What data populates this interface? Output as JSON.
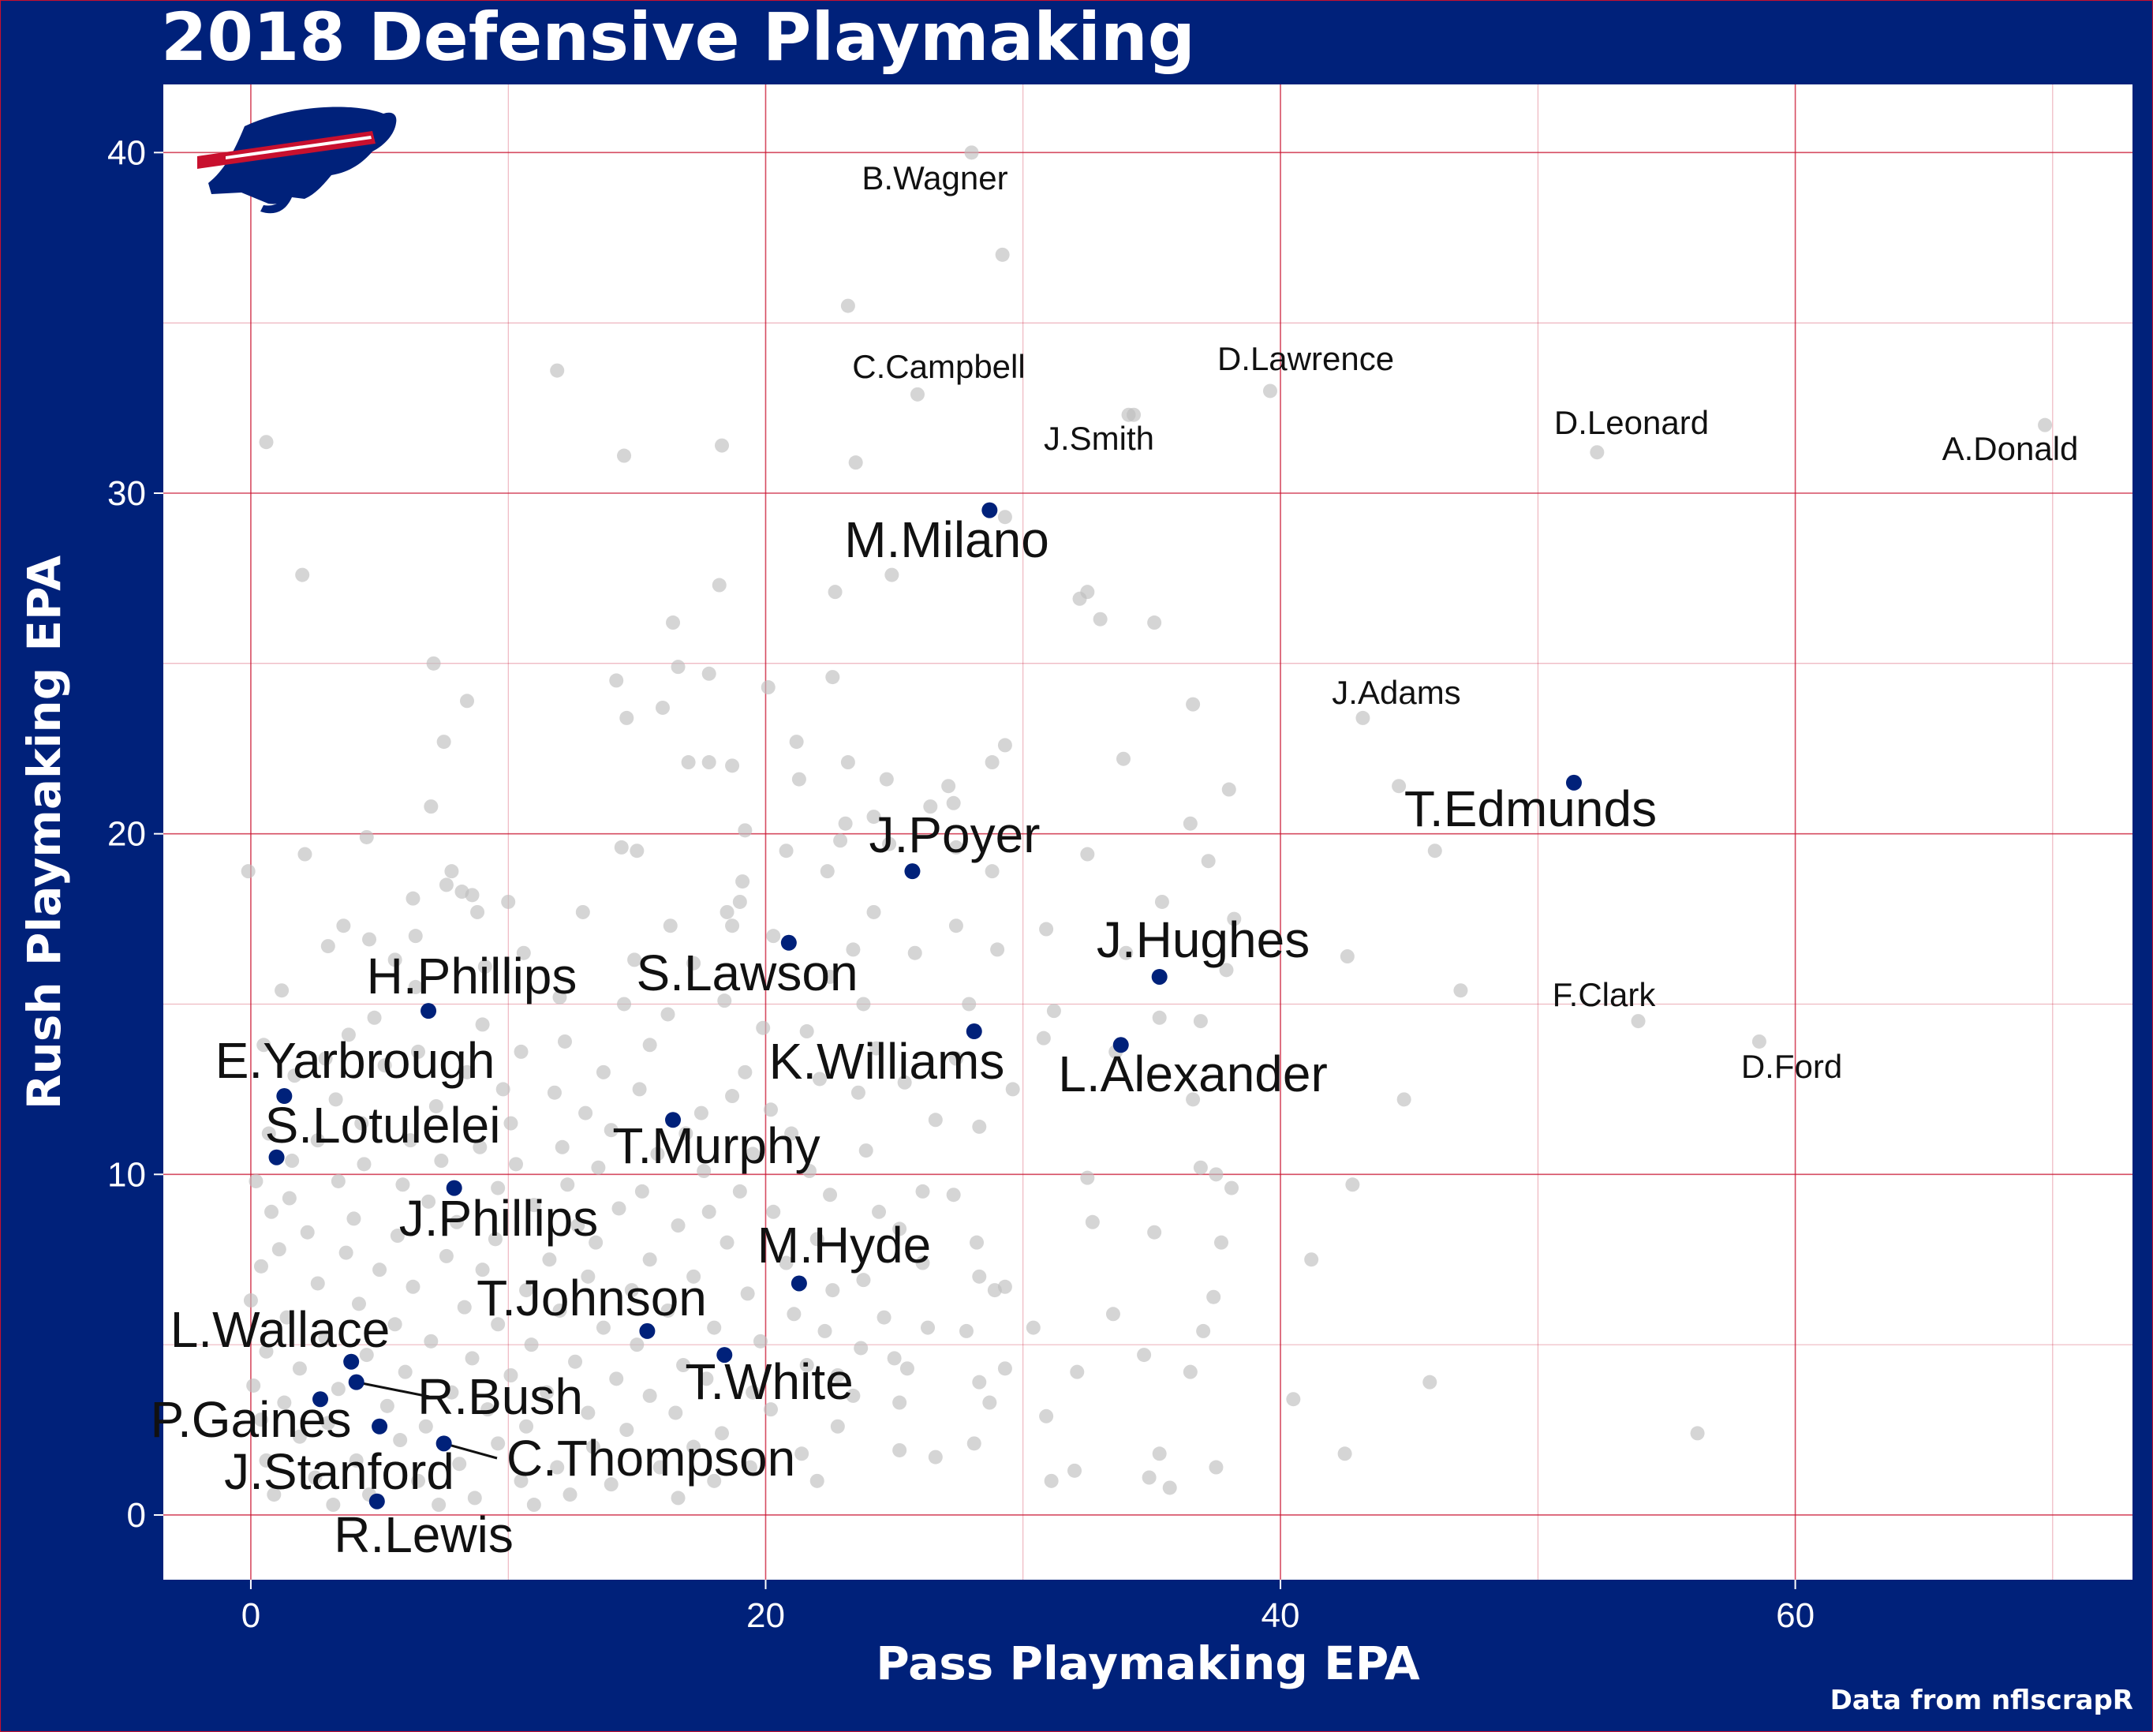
{
  "chart_data": {
    "type": "scatter",
    "title": "2018 Defensive Playmaking",
    "xlabel": "Pass Playmaking EPA",
    "ylabel": "Rush Playmaking EPA",
    "caption": "Data from nflscrapR",
    "xlim": [
      -3.4,
      73.1
    ],
    "ylim": [
      -1.9,
      42.0
    ],
    "x_ticks": [
      0,
      20,
      40,
      60
    ],
    "y_ticks": [
      0,
      10,
      20,
      30,
      40
    ],
    "grid": true,
    "colors": {
      "background": "#00217a",
      "panel": "#ffffff",
      "grid": "#c8102e",
      "highlight": "#00217a",
      "other": "#bfbfbf",
      "text": "#ffffff",
      "label": "#111111",
      "logo_red": "#c8102e"
    },
    "logo": "buffalo-bills-logo",
    "highlighted_players": [
      {
        "name": "M.Milano",
        "x": 28.7,
        "y": 29.5
      },
      {
        "name": "T.Edmunds",
        "x": 51.4,
        "y": 21.5
      },
      {
        "name": "J.Poyer",
        "x": 25.7,
        "y": 18.9
      },
      {
        "name": "J.Hughes",
        "x": 35.3,
        "y": 15.8
      },
      {
        "name": "S.Lawson",
        "x": 20.9,
        "y": 16.8
      },
      {
        "name": "H.Phillips",
        "x": 6.9,
        "y": 14.8
      },
      {
        "name": "K.Williams",
        "x": 28.1,
        "y": 14.2
      },
      {
        "name": "L.Alexander",
        "x": 33.8,
        "y": 13.8
      },
      {
        "name": "E.Yarbrough",
        "x": 1.3,
        "y": 12.3
      },
      {
        "name": "T.Murphy",
        "x": 16.4,
        "y": 11.6
      },
      {
        "name": "S.Lotulelei",
        "x": 1.0,
        "y": 10.5
      },
      {
        "name": "J.Phillips",
        "x": 7.9,
        "y": 9.6
      },
      {
        "name": "M.Hyde",
        "x": 21.3,
        "y": 6.8
      },
      {
        "name": "T.Johnson",
        "x": 15.4,
        "y": 5.4
      },
      {
        "name": "T.White",
        "x": 18.4,
        "y": 4.7
      },
      {
        "name": "L.Wallace",
        "x": 3.9,
        "y": 4.5
      },
      {
        "name": "R.Bush",
        "x": 4.1,
        "y": 3.9
      },
      {
        "name": "P.Gaines",
        "x": 2.7,
        "y": 3.4
      },
      {
        "name": "C.Thompson",
        "x": 7.5,
        "y": 2.1
      },
      {
        "name": "J.Stanford",
        "x": 5.0,
        "y": 2.6
      },
      {
        "name": "R.Lewis",
        "x": 4.9,
        "y": 0.4
      }
    ],
    "labeled_league_leaders": [
      {
        "name": "B.Wagner",
        "x": 28.0,
        "y": 40.0
      },
      {
        "name": "C.Campbell",
        "x": 25.9,
        "y": 32.9
      },
      {
        "name": "D.Lawrence",
        "x": 39.6,
        "y": 33.0
      },
      {
        "name": "J.Smith",
        "x": 34.3,
        "y": 32.3
      },
      {
        "name": "D.Leonard",
        "x": 52.3,
        "y": 31.2
      },
      {
        "name": "A.Donald",
        "x": 69.7,
        "y": 32.0
      },
      {
        "name": "J.Adams",
        "x": 43.2,
        "y": 23.4
      },
      {
        "name": "F.Clark",
        "x": 53.9,
        "y": 14.5
      },
      {
        "name": "D.Ford",
        "x": 58.6,
        "y": 13.9
      }
    ],
    "other_players": [
      [
        29.2,
        37.0
      ],
      [
        23.2,
        35.5
      ],
      [
        11.9,
        33.6
      ],
      [
        34.1,
        32.3
      ],
      [
        0.6,
        31.5
      ],
      [
        18.3,
        31.4
      ],
      [
        14.5,
        31.1
      ],
      [
        23.5,
        30.9
      ],
      [
        29.3,
        29.3
      ],
      [
        2.0,
        27.6
      ],
      [
        24.9,
        27.6
      ],
      [
        22.7,
        27.1
      ],
      [
        18.2,
        27.3
      ],
      [
        32.5,
        27.1
      ],
      [
        32.2,
        26.9
      ],
      [
        33.0,
        26.3
      ],
      [
        35.1,
        26.2
      ],
      [
        16.4,
        26.2
      ],
      [
        7.1,
        25.0
      ],
      [
        16.6,
        24.9
      ],
      [
        17.8,
        24.7
      ],
      [
        22.6,
        24.6
      ],
      [
        14.2,
        24.5
      ],
      [
        20.1,
        24.3
      ],
      [
        8.4,
        23.9
      ],
      [
        16.0,
        23.7
      ],
      [
        36.6,
        23.8
      ],
      [
        14.6,
        23.4
      ],
      [
        7.5,
        22.7
      ],
      [
        21.2,
        22.7
      ],
      [
        29.3,
        22.6
      ],
      [
        17.0,
        22.1
      ],
      [
        17.8,
        22.1
      ],
      [
        18.7,
        22.0
      ],
      [
        23.2,
        22.1
      ],
      [
        28.8,
        22.1
      ],
      [
        33.9,
        22.2
      ],
      [
        21.3,
        21.6
      ],
      [
        24.7,
        21.6
      ],
      [
        27.1,
        21.4
      ],
      [
        38.0,
        21.3
      ],
      [
        44.6,
        21.4
      ],
      [
        7.0,
        20.8
      ],
      [
        27.3,
        20.9
      ],
      [
        26.4,
        20.8
      ],
      [
        24.2,
        20.5
      ],
      [
        19.2,
        20.1
      ],
      [
        23.1,
        20.3
      ],
      [
        36.5,
        20.3
      ],
      [
        4.5,
        19.9
      ],
      [
        22.9,
        19.8
      ],
      [
        24.8,
        19.7
      ],
      [
        14.4,
        19.6
      ],
      [
        15.0,
        19.5
      ],
      [
        20.8,
        19.5
      ],
      [
        27.4,
        19.6
      ],
      [
        46.0,
        19.5
      ],
      [
        2.1,
        19.4
      ],
      [
        32.5,
        19.4
      ],
      [
        37.2,
        19.2
      ],
      [
        -0.1,
        18.9
      ],
      [
        7.8,
        18.9
      ],
      [
        22.4,
        18.9
      ],
      [
        28.8,
        18.9
      ],
      [
        19.1,
        18.6
      ],
      [
        7.6,
        18.5
      ],
      [
        8.2,
        18.3
      ],
      [
        8.6,
        18.2
      ],
      [
        10.0,
        18.0
      ],
      [
        6.3,
        18.1
      ],
      [
        35.4,
        18.0
      ],
      [
        19.0,
        18.0
      ],
      [
        18.5,
        17.7
      ],
      [
        8.8,
        17.7
      ],
      [
        12.9,
        17.7
      ],
      [
        24.2,
        17.7
      ],
      [
        16.3,
        17.3
      ],
      [
        38.2,
        17.5
      ],
      [
        3.6,
        17.3
      ],
      [
        18.7,
        17.3
      ],
      [
        27.4,
        17.3
      ],
      [
        30.9,
        17.2
      ],
      [
        6.4,
        17.0
      ],
      [
        20.3,
        17.0
      ],
      [
        4.6,
        16.9
      ],
      [
        3.0,
        16.7
      ],
      [
        10.6,
        16.5
      ],
      [
        23.4,
        16.6
      ],
      [
        25.8,
        16.5
      ],
      [
        14.9,
        16.3
      ],
      [
        29.0,
        16.6
      ],
      [
        34.0,
        16.5
      ],
      [
        42.6,
        16.4
      ],
      [
        5.6,
        16.3
      ],
      [
        17.2,
        16.2
      ],
      [
        37.9,
        16.0
      ],
      [
        9.1,
        16.1
      ],
      [
        22.5,
        15.8
      ],
      [
        6.4,
        15.5
      ],
      [
        1.2,
        15.4
      ],
      [
        12.0,
        15.2
      ],
      [
        14.5,
        15.0
      ],
      [
        18.4,
        15.1
      ],
      [
        23.8,
        15.0
      ],
      [
        27.9,
        15.0
      ],
      [
        31.2,
        14.8
      ],
      [
        47.0,
        15.4
      ],
      [
        16.2,
        14.7
      ],
      [
        35.3,
        14.6
      ],
      [
        36.9,
        14.5
      ],
      [
        4.8,
        14.6
      ],
      [
        9.0,
        14.4
      ],
      [
        19.9,
        14.3
      ],
      [
        21.6,
        14.2
      ],
      [
        3.8,
        14.1
      ],
      [
        12.2,
        13.9
      ],
      [
        15.5,
        13.8
      ],
      [
        24.3,
        13.7
      ],
      [
        30.8,
        14.0
      ],
      [
        0.5,
        13.8
      ],
      [
        6.5,
        13.6
      ],
      [
        10.5,
        13.6
      ],
      [
        27.4,
        13.4
      ],
      [
        33.6,
        13.6
      ],
      [
        2.9,
        13.4
      ],
      [
        5.2,
        13.2
      ],
      [
        8.4,
        13.0
      ],
      [
        13.7,
        13.0
      ],
      [
        19.2,
        13.0
      ],
      [
        22.1,
        12.8
      ],
      [
        25.4,
        12.7
      ],
      [
        1.7,
        12.9
      ],
      [
        9.8,
        12.5
      ],
      [
        11.8,
        12.4
      ],
      [
        15.1,
        12.5
      ],
      [
        18.7,
        12.3
      ],
      [
        23.6,
        12.4
      ],
      [
        29.6,
        12.5
      ],
      [
        36.6,
        12.2
      ],
      [
        44.8,
        12.2
      ],
      [
        3.3,
        12.2
      ],
      [
        7.2,
        12.0
      ],
      [
        13.0,
        11.8
      ],
      [
        17.5,
        11.8
      ],
      [
        20.2,
        11.9
      ],
      [
        26.6,
        11.6
      ],
      [
        4.3,
        11.5
      ],
      [
        10.1,
        11.5
      ],
      [
        14.0,
        11.3
      ],
      [
        16.9,
        11.2
      ],
      [
        21.0,
        11.2
      ],
      [
        28.3,
        11.4
      ],
      [
        0.7,
        11.2
      ],
      [
        2.6,
        11.0
      ],
      [
        6.2,
        11.0
      ],
      [
        8.9,
        10.8
      ],
      [
        12.1,
        10.8
      ],
      [
        15.8,
        10.6
      ],
      [
        19.5,
        10.6
      ],
      [
        23.9,
        10.7
      ],
      [
        1.6,
        10.4
      ],
      [
        4.4,
        10.3
      ],
      [
        7.4,
        10.4
      ],
      [
        10.3,
        10.3
      ],
      [
        13.5,
        10.2
      ],
      [
        17.6,
        10.1
      ],
      [
        21.7,
        10.1
      ],
      [
        36.9,
        10.2
      ],
      [
        37.5,
        10.0
      ],
      [
        32.5,
        9.9
      ],
      [
        0.2,
        9.8
      ],
      [
        3.4,
        9.8
      ],
      [
        5.9,
        9.7
      ],
      [
        9.6,
        9.6
      ],
      [
        12.3,
        9.7
      ],
      [
        15.2,
        9.5
      ],
      [
        19.0,
        9.5
      ],
      [
        22.5,
        9.4
      ],
      [
        26.1,
        9.5
      ],
      [
        27.3,
        9.4
      ],
      [
        38.1,
        9.6
      ],
      [
        42.8,
        9.7
      ],
      [
        1.5,
        9.3
      ],
      [
        6.9,
        9.2
      ],
      [
        11.0,
        9.1
      ],
      [
        14.3,
        9.0
      ],
      [
        17.8,
        8.9
      ],
      [
        20.3,
        8.9
      ],
      [
        24.4,
        8.9
      ],
      [
        0.8,
        8.9
      ],
      [
        4.0,
        8.7
      ],
      [
        8.0,
        8.6
      ],
      [
        12.7,
        8.5
      ],
      [
        16.6,
        8.5
      ],
      [
        25.2,
        8.4
      ],
      [
        32.7,
        8.6
      ],
      [
        35.1,
        8.3
      ],
      [
        2.2,
        8.3
      ],
      [
        5.7,
        8.2
      ],
      [
        9.5,
        8.1
      ],
      [
        13.4,
        8.0
      ],
      [
        18.5,
        8.0
      ],
      [
        22.0,
        8.1
      ],
      [
        28.2,
        8.0
      ],
      [
        37.7,
        8.0
      ],
      [
        1.1,
        7.8
      ],
      [
        3.7,
        7.7
      ],
      [
        7.6,
        7.6
      ],
      [
        11.6,
        7.5
      ],
      [
        15.5,
        7.5
      ],
      [
        20.8,
        7.4
      ],
      [
        26.1,
        7.4
      ],
      [
        41.2,
        7.5
      ],
      [
        0.4,
        7.3
      ],
      [
        5.0,
        7.2
      ],
      [
        9.0,
        7.2
      ],
      [
        13.1,
        7.0
      ],
      [
        17.2,
        7.0
      ],
      [
        23.8,
        6.9
      ],
      [
        28.3,
        7.0
      ],
      [
        2.6,
        6.8
      ],
      [
        6.3,
        6.7
      ],
      [
        10.7,
        6.6
      ],
      [
        14.8,
        6.6
      ],
      [
        19.3,
        6.5
      ],
      [
        22.6,
        6.6
      ],
      [
        28.9,
        6.6
      ],
      [
        29.3,
        6.7
      ],
      [
        37.4,
        6.4
      ],
      [
        0.0,
        6.3
      ],
      [
        4.2,
        6.2
      ],
      [
        8.3,
        6.1
      ],
      [
        12.0,
        6.0
      ],
      [
        16.2,
        6.0
      ],
      [
        21.1,
        5.9
      ],
      [
        24.6,
        5.8
      ],
      [
        33.5,
        5.9
      ],
      [
        1.4,
        5.8
      ],
      [
        5.6,
        5.6
      ],
      [
        9.6,
        5.6
      ],
      [
        13.7,
        5.5
      ],
      [
        18.0,
        5.5
      ],
      [
        22.3,
        5.4
      ],
      [
        26.3,
        5.5
      ],
      [
        27.8,
        5.4
      ],
      [
        30.4,
        5.5
      ],
      [
        37.0,
        5.4
      ],
      [
        2.9,
        5.2
      ],
      [
        7.0,
        5.1
      ],
      [
        10.9,
        5.0
      ],
      [
        15.0,
        5.0
      ],
      [
        19.8,
        5.1
      ],
      [
        23.7,
        4.9
      ],
      [
        0.6,
        4.8
      ],
      [
        4.5,
        4.7
      ],
      [
        8.6,
        4.6
      ],
      [
        12.6,
        4.5
      ],
      [
        16.8,
        4.4
      ],
      [
        21.6,
        4.4
      ],
      [
        25.0,
        4.6
      ],
      [
        34.7,
        4.7
      ],
      [
        1.9,
        4.3
      ],
      [
        6.0,
        4.2
      ],
      [
        10.1,
        4.1
      ],
      [
        14.2,
        4.0
      ],
      [
        17.7,
        4.0
      ],
      [
        22.8,
        4.1
      ],
      [
        25.5,
        4.3
      ],
      [
        29.3,
        4.3
      ],
      [
        32.1,
        4.2
      ],
      [
        36.5,
        4.2
      ],
      [
        0.1,
        3.8
      ],
      [
        3.4,
        3.7
      ],
      [
        7.8,
        3.6
      ],
      [
        11.5,
        3.6
      ],
      [
        15.5,
        3.5
      ],
      [
        19.5,
        3.6
      ],
      [
        23.4,
        3.5
      ],
      [
        28.3,
        3.9
      ],
      [
        45.8,
        3.9
      ],
      [
        1.3,
        3.3
      ],
      [
        5.3,
        3.2
      ],
      [
        9.2,
        3.1
      ],
      [
        13.1,
        3.0
      ],
      [
        16.5,
        3.0
      ],
      [
        20.2,
        3.1
      ],
      [
        25.2,
        3.3
      ],
      [
        28.7,
        3.3
      ],
      [
        40.5,
        3.4
      ],
      [
        0.4,
        2.8
      ],
      [
        3.0,
        2.7
      ],
      [
        6.8,
        2.6
      ],
      [
        10.7,
        2.6
      ],
      [
        14.6,
        2.5
      ],
      [
        18.3,
        2.4
      ],
      [
        22.8,
        2.6
      ],
      [
        30.9,
        2.9
      ],
      [
        1.9,
        2.3
      ],
      [
        5.8,
        2.2
      ],
      [
        9.6,
        2.1
      ],
      [
        13.3,
        2.0
      ],
      [
        17.2,
        2.0
      ],
      [
        21.4,
        1.8
      ],
      [
        25.2,
        1.9
      ],
      [
        28.1,
        2.1
      ],
      [
        56.2,
        2.4
      ],
      [
        0.6,
        1.6
      ],
      [
        4.1,
        1.6
      ],
      [
        8.1,
        1.5
      ],
      [
        11.9,
        1.4
      ],
      [
        15.9,
        1.4
      ],
      [
        19.4,
        1.4
      ],
      [
        26.6,
        1.7
      ],
      [
        35.3,
        1.8
      ],
      [
        42.5,
        1.8
      ],
      [
        2.5,
        1.1
      ],
      [
        6.5,
        1.0
      ],
      [
        10.5,
        1.0
      ],
      [
        14.0,
        0.9
      ],
      [
        18.0,
        1.0
      ],
      [
        22.0,
        1.0
      ],
      [
        31.1,
        1.0
      ],
      [
        32.0,
        1.3
      ],
      [
        34.9,
        1.1
      ],
      [
        37.5,
        1.4
      ],
      [
        0.9,
        0.6
      ],
      [
        4.6,
        0.6
      ],
      [
        8.7,
        0.5
      ],
      [
        12.4,
        0.6
      ],
      [
        16.6,
        0.5
      ],
      [
        35.7,
        0.8
      ],
      [
        3.2,
        0.3
      ],
      [
        7.3,
        0.3
      ],
      [
        11.0,
        0.3
      ]
    ]
  }
}
